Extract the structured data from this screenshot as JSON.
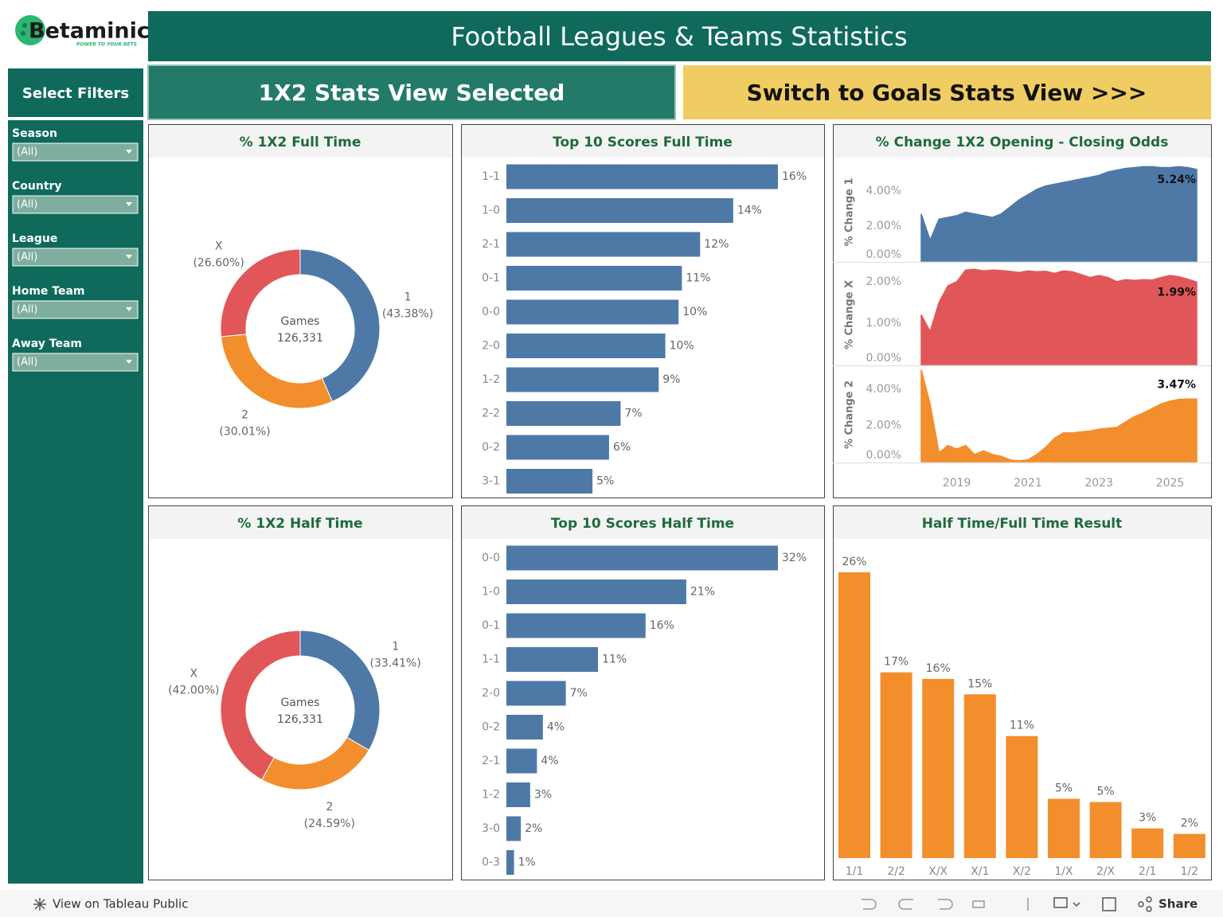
{
  "header": {
    "logo": "Betaminic",
    "tagline": "POWER TO YOUR BETS",
    "title": "Football Leagues & Teams Statistics"
  },
  "nav": {
    "filters_heading": "Select Filters",
    "selected_view": "1X2 Stats View Selected",
    "switch_button": "Switch to Goals Stats View >>>"
  },
  "filters": [
    {
      "label": "Season",
      "value": "(All)"
    },
    {
      "label": "Country",
      "value": "(All)"
    },
    {
      "label": "League",
      "value": "(All)"
    },
    {
      "label": "Home Team",
      "value": "(All)"
    },
    {
      "label": "Away Team",
      "value": "(All)"
    }
  ],
  "footer": {
    "view_link": "View on Tableau Public",
    "share": "Share"
  },
  "chart_data": [
    {
      "type": "donut",
      "title": "% 1X2 Full Time",
      "center_label": "Games",
      "total": {
        "value": 126331,
        "label": "126,331"
      },
      "categories": [
        "1",
        "2",
        "X"
      ],
      "values": [
        43.38,
        30.01,
        26.6
      ],
      "value_labels": [
        "(43.38%)",
        "(30.01%)",
        "(26.60%)"
      ],
      "colors": [
        "#4e79a7",
        "#f28e2b",
        "#e15759"
      ]
    },
    {
      "type": "hbar",
      "title": "Top 10 Scores Full Time",
      "color": "#4e79a7",
      "categories": [
        "1-1",
        "1-0",
        "2-1",
        "0-1",
        "0-0",
        "2-0",
        "1-2",
        "2-2",
        "0-2",
        "3-1"
      ],
      "values": [
        16.4,
        13.7,
        11.7,
        10.6,
        10.4,
        9.6,
        9.2,
        6.9,
        6.2,
        5.2
      ],
      "value_labels": [
        "16%",
        "14%",
        "12%",
        "11%",
        "10%",
        "10%",
        "9%",
        "7%",
        "6%",
        "5%"
      ]
    },
    {
      "type": "area",
      "title": "% Change 1X2 Opening - Closing Odds",
      "x": [
        2018,
        2018.25,
        2018.5,
        2018.75,
        2019,
        2019.25,
        2019.5,
        2019.75,
        2020,
        2020.25,
        2020.5,
        2020.75,
        2021,
        2021.25,
        2021.5,
        2021.75,
        2022,
        2022.25,
        2022.5,
        2022.75,
        2023,
        2023.25,
        2023.5,
        2023.75,
        2024,
        2024.25,
        2024.5,
        2024.75,
        2025,
        2025.25,
        2025.5,
        2025.75
      ],
      "xlim": [
        2018,
        2025.75
      ],
      "xticks": [
        2019,
        2021,
        2023,
        2025
      ],
      "panels": [
        {
          "y_label": "% Change 1",
          "color": "#4e79a7",
          "ylim": [
            0,
            5.6
          ],
          "yticks": [
            {
              "value": 0,
              "label": "0.00%"
            },
            {
              "value": 2,
              "label": "2.00%"
            },
            {
              "value": 4,
              "label": "4.00%"
            }
          ],
          "values": [
            2.7,
            1.2,
            2.4,
            2.5,
            2.6,
            2.8,
            2.7,
            2.6,
            2.5,
            2.7,
            3.1,
            3.5,
            3.8,
            4.1,
            4.3,
            4.4,
            4.5,
            4.6,
            4.7,
            4.8,
            4.9,
            5.1,
            5.2,
            5.3,
            5.35,
            5.4,
            5.4,
            5.35,
            5.35,
            5.4,
            5.35,
            5.24
          ],
          "end_label": "5.24%"
        },
        {
          "y_label": "% Change X",
          "color": "#e15759",
          "ylim": [
            0,
            2.4
          ],
          "yticks": [
            {
              "value": 0,
              "label": "0.00%"
            },
            {
              "value": 1,
              "label": "1.00%"
            },
            {
              "value": 2,
              "label": "2.00%"
            }
          ],
          "values": [
            1.2,
            0.8,
            1.5,
            1.9,
            2.0,
            2.28,
            2.3,
            2.26,
            2.28,
            2.27,
            2.25,
            2.22,
            2.26,
            2.24,
            2.25,
            2.2,
            2.26,
            2.24,
            2.17,
            2.1,
            2.15,
            2.1,
            2.0,
            2.05,
            2.03,
            2.05,
            2.04,
            2.1,
            2.15,
            2.12,
            2.06,
            1.99
          ],
          "end_label": "1.99%"
        },
        {
          "y_label": "% Change 2",
          "color": "#f28e2b",
          "ylim": [
            0,
            5.2
          ],
          "yticks": [
            {
              "value": 0,
              "label": "0.00%"
            },
            {
              "value": 2,
              "label": "2.00%"
            },
            {
              "value": 4,
              "label": "4.00%"
            }
          ],
          "values": [
            5.1,
            3.2,
            0.5,
            0.9,
            0.7,
            0.9,
            0.4,
            0.6,
            0.4,
            0.3,
            0.1,
            0.05,
            0.1,
            0.4,
            0.8,
            1.3,
            1.6,
            1.6,
            1.65,
            1.7,
            1.8,
            1.85,
            1.9,
            2.2,
            2.5,
            2.7,
            2.95,
            3.2,
            3.35,
            3.45,
            3.47,
            3.47
          ],
          "end_label": "3.47%"
        }
      ]
    },
    {
      "type": "donut",
      "title": "% 1X2 Half Time",
      "center_label": "Games",
      "total": {
        "value": 126331,
        "label": "126,331"
      },
      "categories": [
        "1",
        "2",
        "X"
      ],
      "values": [
        33.41,
        24.59,
        42.0
      ],
      "value_labels": [
        "(33.41%)",
        "(24.59%)",
        "(42.00%)"
      ],
      "colors": [
        "#4e79a7",
        "#f28e2b",
        "#e15759"
      ]
    },
    {
      "type": "hbar",
      "title": "Top 10 Scores Half Time",
      "color": "#4e79a7",
      "categories": [
        "0-0",
        "1-0",
        "0-1",
        "1-1",
        "2-0",
        "0-2",
        "2-1",
        "1-2",
        "3-0",
        "0-3"
      ],
      "values": [
        32.0,
        21.2,
        16.4,
        10.8,
        7.0,
        4.3,
        3.6,
        2.8,
        1.7,
        0.9
      ],
      "value_labels": [
        "32%",
        "21%",
        "16%",
        "11%",
        "7%",
        "4%",
        "4%",
        "3%",
        "2%",
        "1%"
      ]
    },
    {
      "type": "vbar",
      "title": "Half Time/Full Time Result",
      "color": "#f28e2b",
      "categories": [
        "1/1",
        "2/2",
        "X/X",
        "X/1",
        "X/2",
        "1/X",
        "2/X",
        "2/1",
        "1/2"
      ],
      "values": [
        26.0,
        16.9,
        16.3,
        14.9,
        11.1,
        5.4,
        5.1,
        2.7,
        2.2
      ],
      "value_labels": [
        "26%",
        "17%",
        "16%",
        "15%",
        "11%",
        "5%",
        "5%",
        "3%",
        "2%"
      ]
    }
  ]
}
